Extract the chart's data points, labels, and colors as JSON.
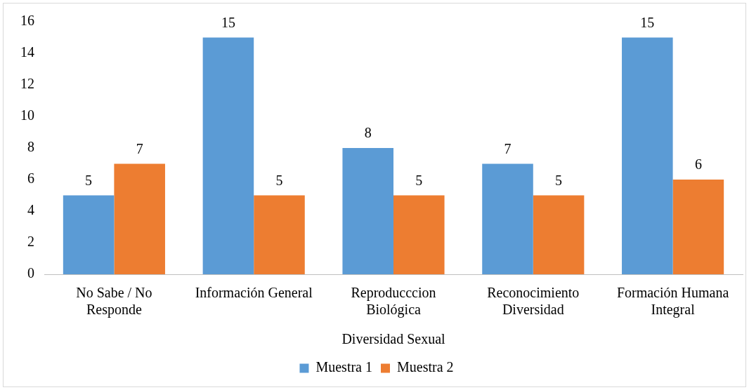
{
  "chart_data": {
    "type": "bar",
    "xlabel": "Diversidad Sexual",
    "categories": [
      "No Sabe / No Responde",
      "Información General",
      "Reproducccion Biológica",
      "Reconocimiento Diversidad",
      "Formación Humana Integral"
    ],
    "series": [
      {
        "name": "Muestra 1",
        "color": "#5b9bd5",
        "values": [
          5,
          15,
          8,
          7,
          15
        ]
      },
      {
        "name": "Muestra 2",
        "color": "#ed7d31",
        "values": [
          7,
          5,
          5,
          5,
          6
        ]
      }
    ],
    "ylim": [
      0,
      16
    ],
    "yticks": [
      0,
      2,
      4,
      6,
      8,
      10,
      12,
      14,
      16
    ],
    "grid": false,
    "legend": "bottom",
    "data_labels": true
  }
}
